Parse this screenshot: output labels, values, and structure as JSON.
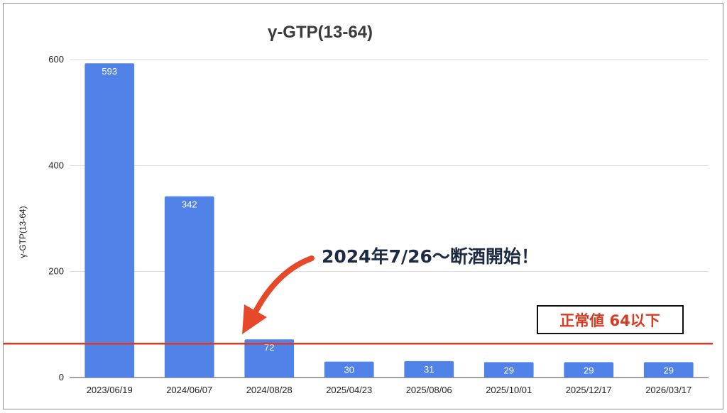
{
  "chart_data": {
    "type": "bar",
    "title": "γ-GTP(13-64)",
    "ylabel": "γ-GTP(13-64)",
    "xlabel": "",
    "categories": [
      "2023/06/19",
      "2024/06/07",
      "2024/08/28",
      "2025/04/23",
      "2025/08/06",
      "2025/10/01",
      "2025/12/17",
      "2026/03/17"
    ],
    "values": [
      593,
      342,
      72,
      30,
      31,
      29,
      29,
      29
    ],
    "data_labels": [
      "593",
      "342",
      "72",
      "30",
      "31",
      "29",
      "29",
      "29"
    ],
    "ylim": [
      0,
      600
    ],
    "yticks": [
      0,
      200,
      400,
      600
    ],
    "ytick_labels": [
      "0",
      "200",
      "400",
      "600"
    ],
    "grid": true,
    "reference_line": {
      "value": 64,
      "color": "#d93a21"
    },
    "annotations": {
      "start_note": "2024年7/26〜断酒開始！",
      "normal_range": "正常値 64以下"
    },
    "colors": {
      "bar": "#5182e8",
      "reference": "#d93a21",
      "arrow": "#e8482a",
      "grid": "#d9d9d9"
    }
  }
}
